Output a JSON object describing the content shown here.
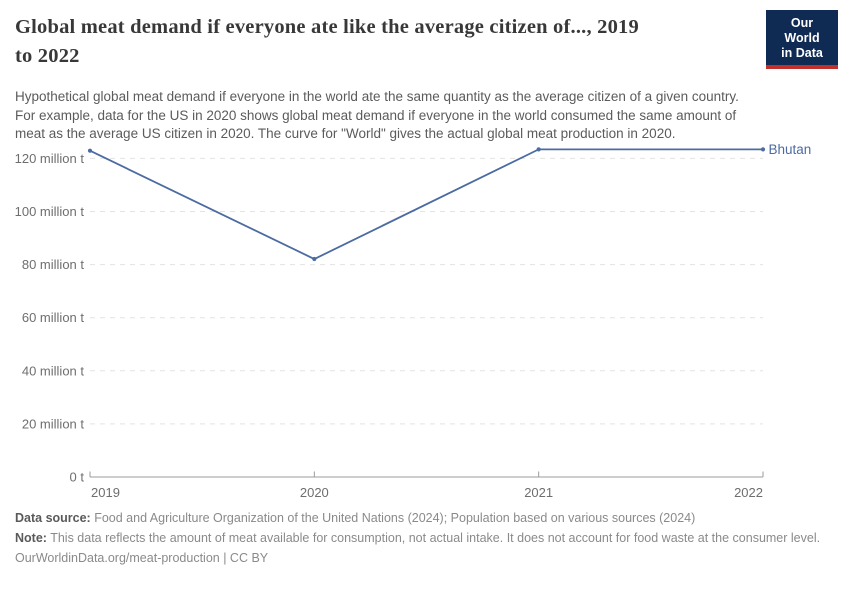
{
  "header": {
    "title_lines": [
      "Global meat demand if everyone ate like the average citizen of..., 2019",
      "to 2022"
    ],
    "logo": {
      "line1": "Our World",
      "line2": "in Data",
      "bg_color": "#102b53",
      "accent_color": "#c1302b"
    },
    "subtitle_lines": [
      "Hypothetical global meat demand if everyone in the world ate the same quantity as the average citizen of a given country.",
      "For example, data for the US in 2020 shows global meat demand if everyone in the world consumed the same amount of",
      "meat as the average US citizen in 2020. The curve for \"World\" gives the actual global meat production in 2020."
    ]
  },
  "chart_data": {
    "type": "line",
    "title": "Global meat demand if everyone ate like the average citizen of..., 2019 to 2022",
    "x": [
      "2019",
      "2020",
      "2021",
      "2022"
    ],
    "series": [
      {
        "name": "Bhutan",
        "color": "#4c6ba3",
        "values": [
          122.9,
          82.1,
          123.4,
          123.4
        ]
      }
    ],
    "unit": "million t",
    "yticks": [
      {
        "value": 0,
        "label": "0 t"
      },
      {
        "value": 20,
        "label": "20 million t"
      },
      {
        "value": 40,
        "label": "40 million t"
      },
      {
        "value": 60,
        "label": "60 million t"
      },
      {
        "value": 80,
        "label": "80 million t"
      },
      {
        "value": 100,
        "label": "100 million t"
      },
      {
        "value": 120,
        "label": "120 million t"
      }
    ],
    "ylim": [
      0,
      127
    ],
    "grid": "horizontal-dashed",
    "legend": "end-of-line-label",
    "colors": {
      "grid": "#e3e3e3",
      "axis": "#9b9b9b",
      "tick_text": "#6e6e6e"
    }
  },
  "footer": {
    "data_source_label": "Data source:",
    "data_source_text": " Food and Agriculture Organization of the United Nations (2024); Population based on various sources (2024)",
    "note_label": "Note:",
    "note_text": " This data reflects the amount of meat available for consumption, not actual intake. It does not account for food waste at the consumer level.",
    "citation": "OurWorldinData.org/meat-production | CC BY"
  }
}
